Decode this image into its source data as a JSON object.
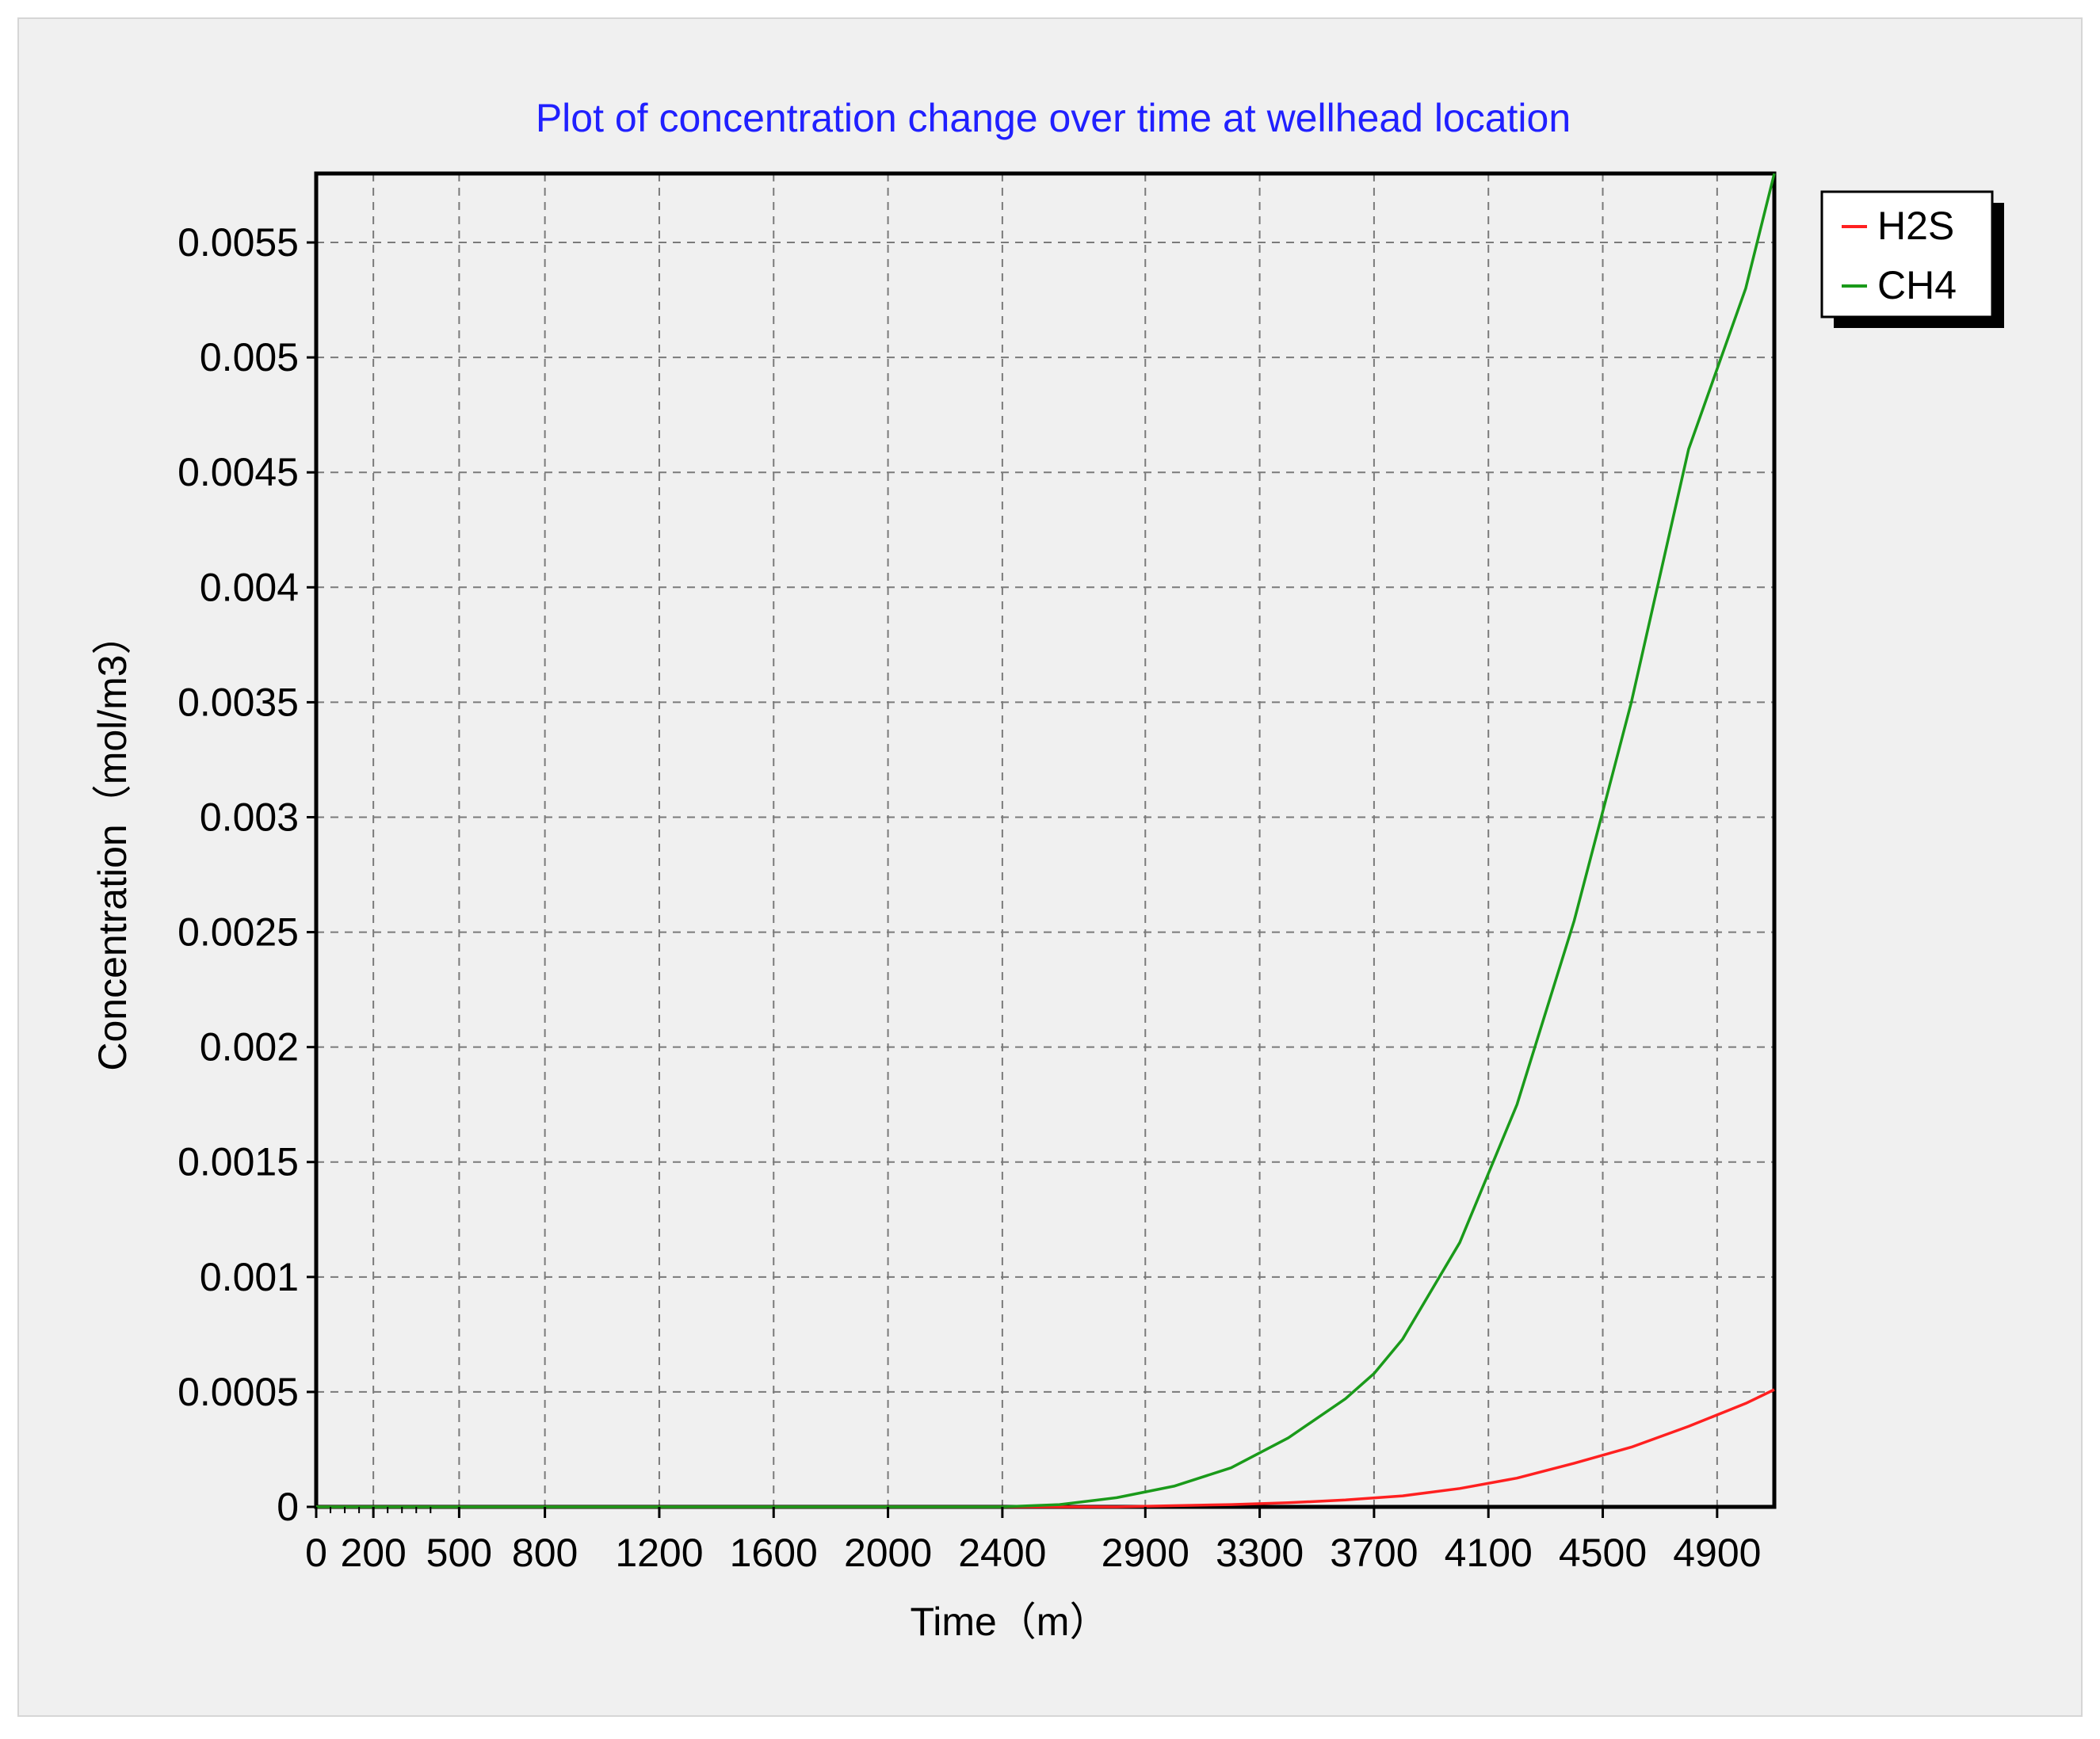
{
  "chart_data": {
    "type": "line",
    "title": "Plot of concentration change over time at wellhead location",
    "xlabel": "Time（m）",
    "ylabel": "Concentration（mol/m3）",
    "xlim": [
      0,
      5100
    ],
    "ylim": [
      0,
      0.0058
    ],
    "x_ticks": [
      0,
      200,
      500,
      800,
      1200,
      1600,
      2000,
      2400,
      2900,
      3300,
      3700,
      4100,
      4500,
      4900
    ],
    "y_ticks": [
      0,
      0.0005,
      0.001,
      0.0015,
      0.002,
      0.0025,
      0.003,
      0.0035,
      0.004,
      0.0045,
      0.005,
      0.0055
    ],
    "x_tick_labels": [
      "0",
      "200",
      "500",
      "800",
      "1200",
      "1600",
      "2000",
      "2400",
      "2900",
      "3300",
      "3700",
      "4100",
      "4500",
      "4900"
    ],
    "y_tick_labels": [
      "0",
      "0.0005",
      "0.001",
      "0.0015",
      "0.002",
      "0.0025",
      "0.003",
      "0.0035",
      "0.004",
      "0.0045",
      "0.005",
      "0.0055"
    ],
    "grid": true,
    "legend_position": "top-right",
    "series": [
      {
        "name": "H2S",
        "color": "#ff2020",
        "x": [
          0,
          2400,
          2800,
          3000,
          3200,
          3400,
          3600,
          3800,
          4000,
          4200,
          4400,
          4600,
          4800,
          5000,
          5100
        ],
        "y": [
          0,
          0,
          0,
          5e-06,
          1e-05,
          1.8e-05,
          3e-05,
          4.8e-05,
          8e-05,
          0.000125,
          0.00019,
          0.00026,
          0.00035,
          0.00045,
          0.00051
        ]
      },
      {
        "name": "CH4",
        "color": "#1a9a1a",
        "x": [
          0,
          2400,
          2600,
          2800,
          3000,
          3200,
          3400,
          3600,
          3700,
          3800,
          4000,
          4200,
          4400,
          4600,
          4800,
          5000,
          5100
        ],
        "y": [
          0,
          0,
          1e-05,
          4e-05,
          9e-05,
          0.00017,
          0.0003,
          0.00047,
          0.00058,
          0.00073,
          0.00115,
          0.00175,
          0.00255,
          0.0035,
          0.0046,
          0.0053,
          0.0058
        ]
      }
    ]
  }
}
